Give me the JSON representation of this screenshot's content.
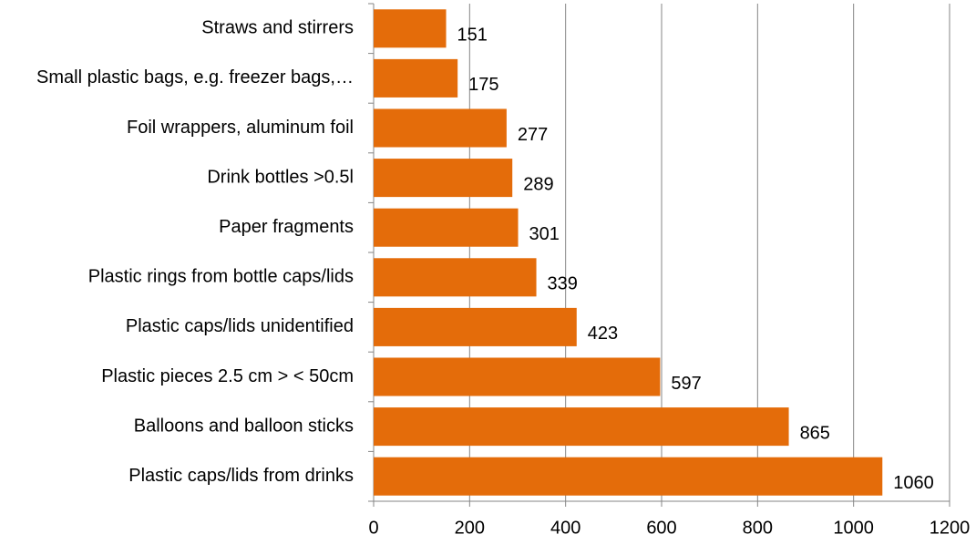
{
  "chart_data": {
    "type": "bar",
    "orientation": "horizontal",
    "categories": [
      "Straws and stirrers",
      "Small plastic bags, e.g. freezer bags,…",
      "Foil wrappers, aluminum foil",
      "Drink bottles  >0.5l",
      "Paper fragments",
      "Plastic rings from bottle caps/lids",
      "Plastic caps/lids unidentified",
      "Plastic pieces 2.5 cm > < 50cm",
      "Balloons and balloon sticks",
      "Plastic caps/lids from drinks"
    ],
    "values": [
      151,
      175,
      277,
      289,
      301,
      339,
      423,
      597,
      865,
      1060
    ],
    "color": "#e46c0a",
    "xlim": [
      0,
      1200
    ],
    "xticks": [
      0,
      200,
      400,
      600,
      800,
      1000,
      1200
    ],
    "grid": true
  }
}
